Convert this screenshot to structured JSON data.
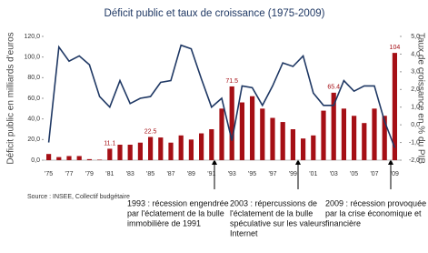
{
  "chart_data": {
    "type": "bar",
    "title": "Déficit public et taux de croissance (1975-2009)",
    "y_label": "Déficit public en milliards d'euros",
    "y2_label": "Taux de croissance en % du PIB",
    "source": "Source : INSEE, Collectif budgétaire",
    "categories": [
      "'75",
      null,
      "'77",
      null,
      "'79",
      null,
      "'81",
      null,
      "'83",
      null,
      "'85",
      null,
      "'87",
      null,
      "'89",
      null,
      "'91",
      null,
      "'93",
      null,
      "'95",
      null,
      "'97",
      null,
      "'99",
      null,
      "'01",
      null,
      "'03",
      null,
      "'05",
      null,
      "'07",
      null,
      "'09"
    ],
    "series": [
      {
        "type": "bar",
        "color": "#a50f15",
        "values": [
          6,
          3,
          4,
          4,
          1,
          0.5,
          11.1,
          15,
          15,
          17,
          22.5,
          22,
          17,
          24,
          20,
          26,
          30,
          50,
          71.5,
          56,
          62,
          50,
          41,
          37,
          30,
          21,
          24,
          48,
          65.4,
          50,
          43,
          36,
          50,
          43,
          104
        ],
        "value_labels": [
          null,
          null,
          null,
          null,
          null,
          null,
          "11.1",
          null,
          null,
          null,
          "22.5",
          null,
          null,
          null,
          null,
          null,
          null,
          null,
          "71.5",
          null,
          null,
          null,
          null,
          null,
          null,
          null,
          null,
          null,
          "65.4",
          null,
          null,
          null,
          null,
          null,
          "104"
        ]
      },
      {
        "type": "line",
        "axis": "y2",
        "color": "#1f3864",
        "values": [
          -1.0,
          4.4,
          3.6,
          3.9,
          3.4,
          1.6,
          1.0,
          2.5,
          1.2,
          1.5,
          1.6,
          2.4,
          2.5,
          4.5,
          4.3,
          2.6,
          1.0,
          1.5,
          -0.9,
          2.2,
          2.1,
          1.1,
          2.2,
          3.5,
          3.3,
          3.9,
          1.8,
          1.1,
          1.1,
          2.5,
          1.9,
          2.2,
          2.2,
          0.2,
          -1.3
        ]
      }
    ],
    "ylim": [
      0,
      120
    ],
    "yticks": [
      {
        "value": 0,
        "label": "0,0"
      },
      {
        "value": 20,
        "label": "20,0"
      },
      {
        "value": 40,
        "label": "40,0"
      },
      {
        "value": 60,
        "label": "60,0"
      },
      {
        "value": 80,
        "label": "80,0"
      },
      {
        "value": 100,
        "label": "100,0"
      },
      {
        "value": 120,
        "label": "120,0"
      }
    ],
    "y2lim": [
      -2,
      5
    ],
    "y2ticks": [
      {
        "value": -2,
        "label": "-2,0"
      },
      {
        "value": -1,
        "label": "-1,0"
      },
      {
        "value": 0,
        "label": "0,0"
      },
      {
        "value": 1,
        "label": "1,0"
      },
      {
        "value": 2,
        "label": "2,0"
      },
      {
        "value": 3,
        "label": "3,0"
      },
      {
        "value": 4,
        "label": "4,0"
      },
      {
        "value": 5,
        "label": "5,0"
      }
    ],
    "annotations": [
      {
        "lines": [
          "1993 : récession engendrée",
          "par l'éclatement de la bulle",
          "immobilière de 1991"
        ]
      },
      {
        "lines": [
          "2003 : répercussions de",
          "l'éclatement de la bulle",
          "spéculative sur les valeurs",
          "Internet"
        ]
      },
      {
        "lines": [
          "2009 : récession provoquée",
          "par la crise économique et",
          "financière"
        ]
      }
    ]
  }
}
